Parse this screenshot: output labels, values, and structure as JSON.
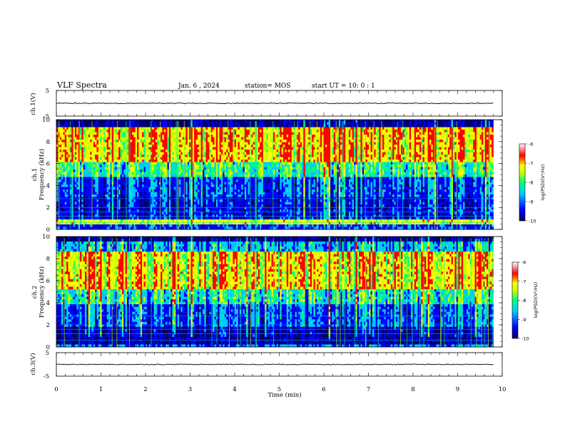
{
  "header": {
    "title": "VLF Spectra",
    "date": "Jan. 6 , 2024",
    "station": "station= MOS",
    "start": "start UT =  10: 0 : 1"
  },
  "colors": {
    "frame": "#000000",
    "colormap": [
      "#000070",
      "#0000ff",
      "#00c8ff",
      "#00ff80",
      "#c0ff00",
      "#ffff00",
      "#ff0000",
      "#ffffff"
    ]
  },
  "chart_data": [
    {
      "type": "line",
      "id": "ch1-waveform",
      "ylabel": "ch.1(V)",
      "ylim": [
        -5,
        5
      ],
      "yticks": [
        "5",
        "-5"
      ],
      "xlim": [
        0,
        10
      ],
      "series": [
        {
          "values_note": "flat trace near 0 V",
          "x": [
            0,
            9.8
          ],
          "y": [
            0,
            0
          ]
        }
      ]
    },
    {
      "type": "heatmap",
      "id": "ch1-spectrogram",
      "ylabel": "ch.1\nFrequency (kHz)",
      "ylabel_lines": [
        "ch.1",
        "Frequency (kHz)"
      ],
      "ylim": [
        0,
        10
      ],
      "yticks": [
        "0",
        "2",
        "4",
        "6",
        "8",
        "10"
      ],
      "xlim": [
        0,
        10
      ],
      "data_xmax": 9.8,
      "colorbar": {
        "range": [
          -10,
          -6
        ],
        "ticks": [
          "-6",
          "-7",
          "-8",
          "-9",
          "-10"
        ],
        "label": "log(PSD)(V²/Hz)"
      }
    },
    {
      "type": "heatmap",
      "id": "ch2-spectrogram",
      "ylabel": "ch.2\nFrequency (kHz)",
      "ylabel_lines": [
        "ch.2",
        "Frequency (kHz)"
      ],
      "ylim": [
        0,
        10
      ],
      "yticks": [
        "0",
        "2",
        "4",
        "6",
        "8",
        "10"
      ],
      "xlim": [
        0,
        10
      ],
      "data_xmax": 9.8,
      "colorbar": {
        "range": [
          -10,
          -6
        ],
        "ticks": [
          "-6",
          "-7",
          "-8",
          "-9",
          "-10"
        ],
        "label": "log(PSD)(V²/Hz)"
      }
    },
    {
      "type": "line",
      "id": "ch3-waveform",
      "ylabel": "ch.3(V)",
      "ylim": [
        -5,
        5
      ],
      "yticks": [
        "5",
        "-5"
      ],
      "xlim": [
        0,
        10
      ],
      "series": [
        {
          "values_note": "flat trace near 0 V",
          "x": [
            0,
            9.8
          ],
          "y": [
            0,
            0
          ]
        }
      ]
    }
  ],
  "xaxis": {
    "label": "Time (min)",
    "ticks": [
      "0",
      "1",
      "2",
      "3",
      "4",
      "5",
      "6",
      "7",
      "8",
      "9",
      "10"
    ]
  }
}
